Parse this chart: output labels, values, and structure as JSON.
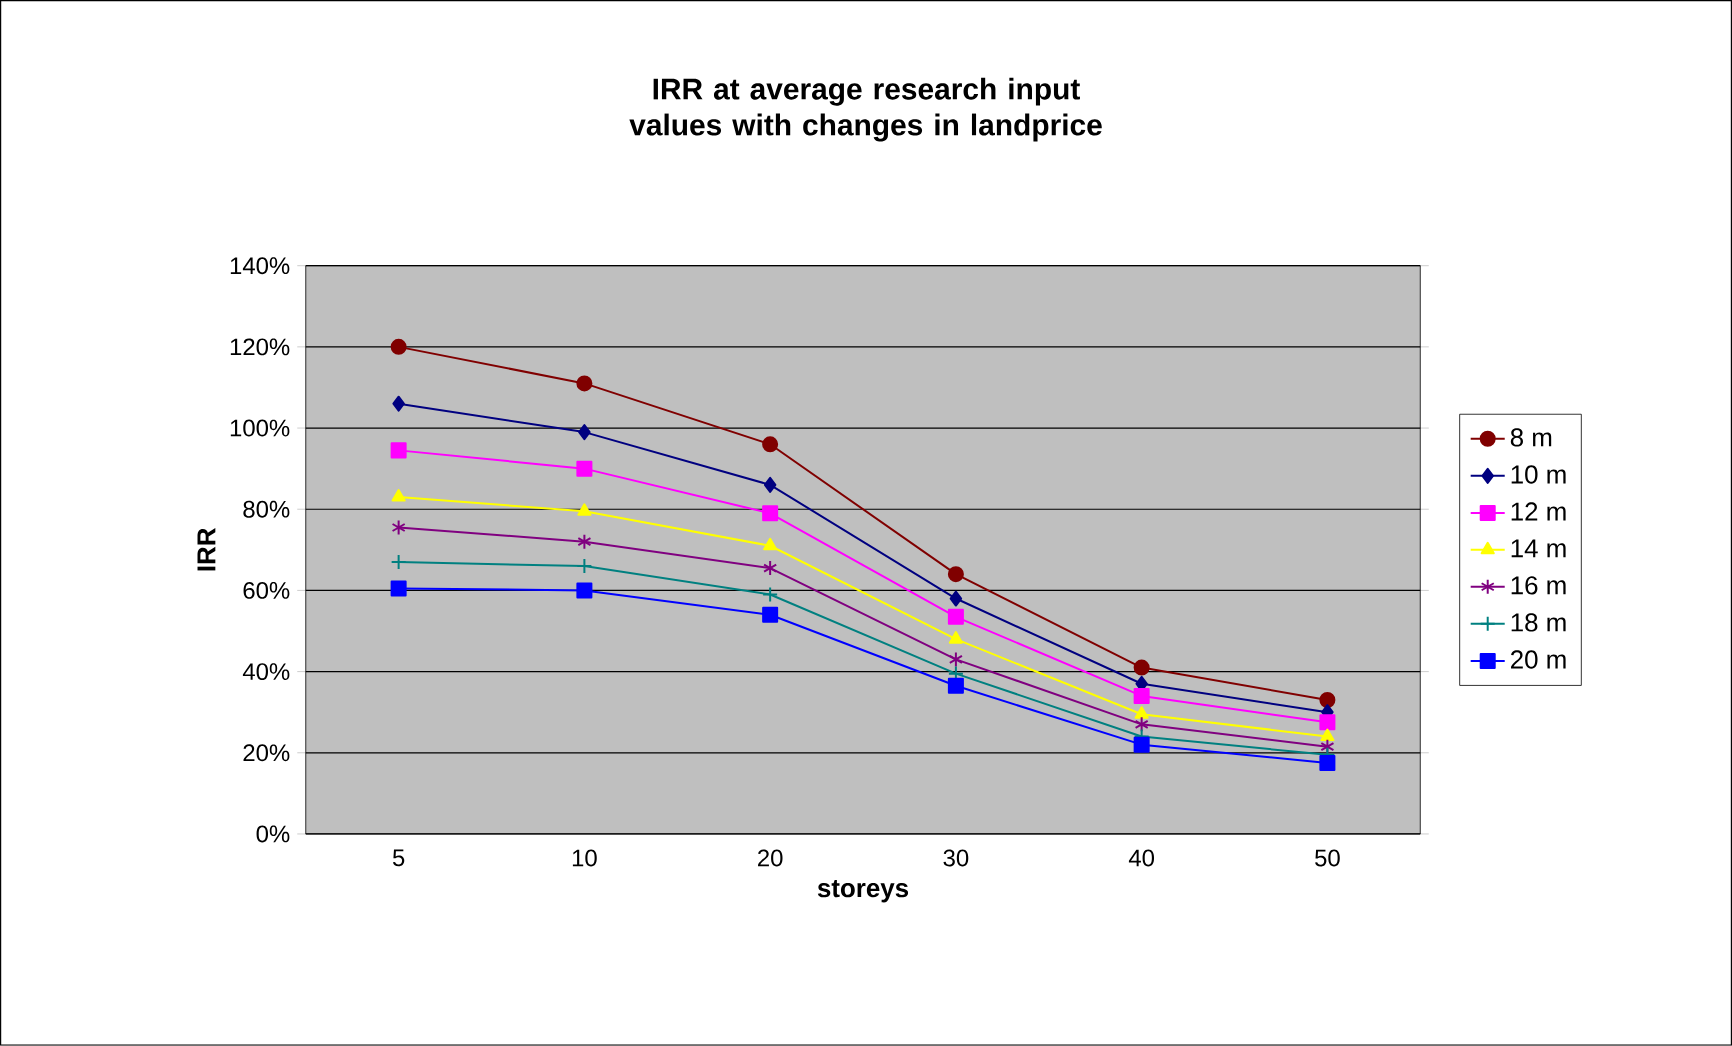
{
  "chart_data": {
    "type": "line",
    "title": "IRR at average research input values with changes in landprice",
    "xlabel": "storeys",
    "ylabel": "IRR",
    "categories": [
      "5",
      "10",
      "20",
      "30",
      "40",
      "50"
    ],
    "ylim": [
      0,
      140
    ],
    "yticks": [
      {
        "value": 0,
        "label": "0%"
      },
      {
        "value": 20,
        "label": "20%"
      },
      {
        "value": 40,
        "label": "40%"
      },
      {
        "value": 60,
        "label": "60%"
      },
      {
        "value": 80,
        "label": "80%"
      },
      {
        "value": 100,
        "label": "100%"
      },
      {
        "value": 120,
        "label": "120%"
      },
      {
        "value": 140,
        "label": "140%"
      }
    ],
    "grid": "y",
    "legend": "right",
    "series": [
      {
        "name": "8 m",
        "color": "#800000",
        "marker": "circle",
        "values": [
          120,
          111,
          96,
          64,
          41,
          33
        ]
      },
      {
        "name": "10 m",
        "color": "#000080",
        "marker": "diamond",
        "values": [
          106,
          99,
          86,
          58,
          37,
          30
        ]
      },
      {
        "name": "12 m",
        "color": "#ff00ff",
        "marker": "square",
        "values": [
          94.5,
          90,
          79,
          53.5,
          34,
          27.5
        ]
      },
      {
        "name": "14 m",
        "color": "#ffff00",
        "marker": "triangle",
        "values": [
          83,
          79.5,
          71,
          48,
          29.5,
          24
        ]
      },
      {
        "name": "16 m",
        "color": "#800080",
        "marker": "cross",
        "values": [
          75.5,
          72,
          65.5,
          43,
          27,
          21.5
        ]
      },
      {
        "name": "18 m",
        "color": "#008080",
        "marker": "cross",
        "values": [
          67,
          66,
          59,
          39.5,
          24,
          19.5
        ]
      },
      {
        "name": "20 m",
        "color": "#0000ff",
        "marker": "square",
        "values": [
          60.5,
          60,
          54,
          36.5,
          22,
          17.5
        ]
      }
    ]
  }
}
